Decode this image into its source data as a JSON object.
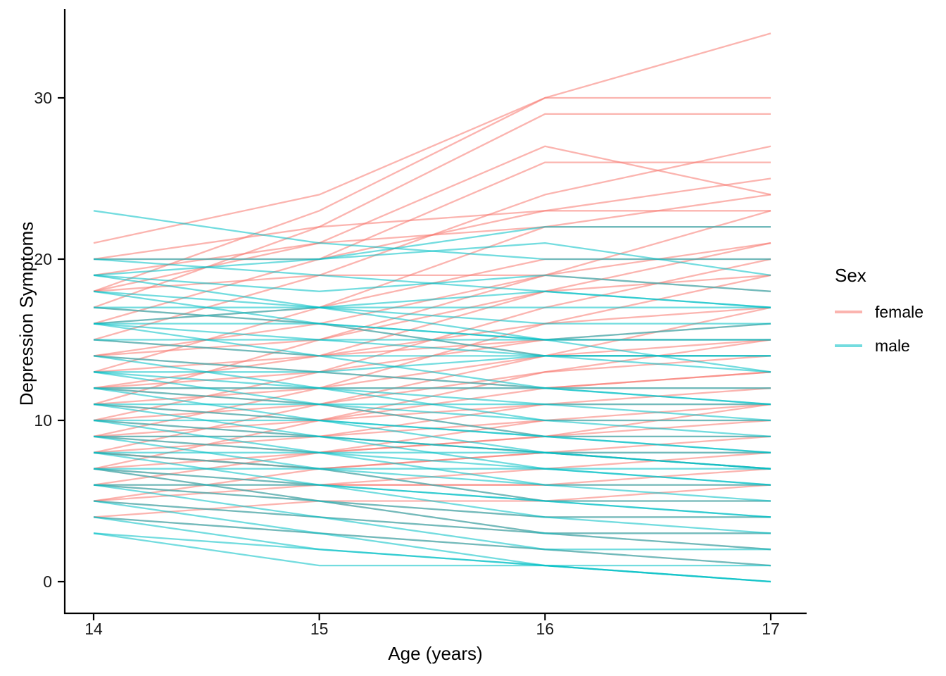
{
  "chart_data": {
    "type": "line",
    "title": "",
    "xlabel": "Age (years)",
    "ylabel": "Depression Symptoms",
    "x": [
      14,
      15,
      16,
      17
    ],
    "x_ticks": [
      "14",
      "15",
      "16",
      "17"
    ],
    "y_ticks": [
      "0",
      "10",
      "20",
      "30"
    ],
    "y_tick_values": [
      0,
      10,
      20,
      30
    ],
    "xlim": [
      13.85,
      17.15
    ],
    "ylim": [
      -2.2,
      35.5
    ],
    "grid": false,
    "line_opacity": 0.55,
    "line_width": 2.3,
    "legend": {
      "title": "Sex",
      "position": "right",
      "items": [
        {
          "label": "female",
          "color": "#F8766D"
        },
        {
          "label": "male",
          "color": "#00BFC4"
        }
      ]
    },
    "series": [
      {
        "sex": "female",
        "values": [
          21,
          24,
          30,
          34
        ]
      },
      {
        "sex": "female",
        "values": [
          18,
          23,
          30,
          30
        ]
      },
      {
        "sex": "female",
        "values": [
          17,
          22,
          29,
          29
        ]
      },
      {
        "sex": "female",
        "values": [
          15,
          19,
          24,
          27
        ]
      },
      {
        "sex": "female",
        "values": [
          16,
          20,
          26,
          26
        ]
      },
      {
        "sex": "female",
        "values": [
          20,
          22,
          23,
          25
        ]
      },
      {
        "sex": "female",
        "values": [
          18,
          21,
          27,
          24
        ]
      },
      {
        "sex": "female",
        "values": [
          13,
          17,
          22,
          24
        ]
      },
      {
        "sex": "female",
        "values": [
          20,
          20,
          23,
          23
        ]
      },
      {
        "sex": "female",
        "values": [
          11,
          15,
          19,
          23
        ]
      },
      {
        "sex": "female",
        "values": [
          19,
          21,
          22,
          22
        ]
      },
      {
        "sex": "female",
        "values": [
          12,
          14,
          18,
          21
        ]
      },
      {
        "sex": "female",
        "values": [
          18,
          19,
          19,
          21
        ]
      },
      {
        "sex": "female",
        "values": [
          10,
          13,
          17,
          20
        ]
      },
      {
        "sex": "female",
        "values": [
          16,
          17,
          20,
          20
        ]
      },
      {
        "sex": "female",
        "values": [
          9,
          12,
          16,
          19
        ]
      },
      {
        "sex": "female",
        "values": [
          14,
          15,
          18,
          19
        ]
      },
      {
        "sex": "female",
        "values": [
          17,
          16,
          19,
          18
        ]
      },
      {
        "sex": "female",
        "values": [
          8,
          11,
          14,
          17
        ]
      },
      {
        "sex": "female",
        "values": [
          13,
          14,
          16,
          17
        ]
      },
      {
        "sex": "female",
        "values": [
          12,
          13,
          15,
          16
        ]
      },
      {
        "sex": "female",
        "values": [
          15,
          14,
          15,
          15
        ]
      },
      {
        "sex": "female",
        "values": [
          7,
          10,
          13,
          15
        ]
      },
      {
        "sex": "female",
        "values": [
          11,
          12,
          14,
          14
        ]
      },
      {
        "sex": "female",
        "values": [
          14,
          16,
          14,
          15
        ]
      },
      {
        "sex": "female",
        "values": [
          10,
          11,
          13,
          14
        ]
      },
      {
        "sex": "female",
        "values": [
          9,
          10,
          12,
          13
        ]
      },
      {
        "sex": "female",
        "values": [
          14,
          13,
          12,
          13
        ]
      },
      {
        "sex": "female",
        "values": [
          8,
          9,
          11,
          12
        ]
      },
      {
        "sex": "female",
        "values": [
          12,
          12,
          12,
          12
        ]
      },
      {
        "sex": "female",
        "values": [
          6,
          8,
          10,
          11
        ]
      },
      {
        "sex": "female",
        "values": [
          11,
          10,
          11,
          11
        ]
      },
      {
        "sex": "female",
        "values": [
          12,
          11,
          9,
          11
        ]
      },
      {
        "sex": "female",
        "values": [
          7,
          8,
          9,
          10
        ]
      },
      {
        "sex": "female",
        "values": [
          10,
          9,
          10,
          10
        ]
      },
      {
        "sex": "female",
        "values": [
          5,
          7,
          8,
          9
        ]
      },
      {
        "sex": "female",
        "values": [
          9,
          8,
          9,
          9
        ]
      },
      {
        "sex": "female",
        "values": [
          8,
          7,
          8,
          8
        ]
      },
      {
        "sex": "female",
        "values": [
          6,
          6,
          7,
          8
        ]
      },
      {
        "sex": "female",
        "values": [
          9,
          9,
          8,
          7
        ]
      },
      {
        "sex": "female",
        "values": [
          5,
          6,
          6,
          7
        ]
      },
      {
        "sex": "female",
        "values": [
          7,
          6,
          6,
          6
        ]
      },
      {
        "sex": "female",
        "values": [
          4,
          5,
          5,
          6
        ]
      },
      {
        "sex": "female",
        "values": [
          8,
          7,
          5,
          5
        ]
      },
      {
        "sex": "female",
        "values": [
          6,
          5,
          4,
          4
        ]
      },
      {
        "sex": "female",
        "values": [
          5,
          4,
          3,
          3
        ]
      },
      {
        "sex": "female",
        "values": [
          4,
          3,
          2,
          1
        ]
      },
      {
        "sex": "female",
        "values": [
          7,
          5,
          3,
          2
        ]
      },
      {
        "sex": "male",
        "values": [
          23,
          21,
          20,
          20
        ]
      },
      {
        "sex": "male",
        "values": [
          19,
          20,
          22,
          22
        ]
      },
      {
        "sex": "male",
        "values": [
          20,
          20,
          21,
          19
        ]
      },
      {
        "sex": "male",
        "values": [
          19,
          18,
          19,
          18
        ]
      },
      {
        "sex": "male",
        "values": [
          16,
          17,
          18,
          17
        ]
      },
      {
        "sex": "male",
        "values": [
          18,
          17,
          16,
          16
        ]
      },
      {
        "sex": "male",
        "values": [
          17,
          16,
          15,
          16
        ]
      },
      {
        "sex": "male",
        "values": [
          16,
          15,
          15,
          15
        ]
      },
      {
        "sex": "male",
        "values": [
          16,
          16,
          15,
          15
        ]
      },
      {
        "sex": "male",
        "values": [
          15,
          14,
          14,
          14
        ]
      },
      {
        "sex": "male",
        "values": [
          19,
          17,
          15,
          13
        ]
      },
      {
        "sex": "male",
        "values": [
          14,
          13,
          14,
          13
        ]
      },
      {
        "sex": "male",
        "values": [
          13,
          13,
          12,
          12
        ]
      },
      {
        "sex": "male",
        "values": [
          16,
          14,
          12,
          11
        ]
      },
      {
        "sex": "male",
        "values": [
          12,
          12,
          11,
          11
        ]
      },
      {
        "sex": "male",
        "values": [
          11,
          11,
          10,
          10
        ]
      },
      {
        "sex": "male",
        "values": [
          14,
          12,
          10,
          9
        ]
      },
      {
        "sex": "male",
        "values": [
          10,
          10,
          9,
          9
        ]
      },
      {
        "sex": "male",
        "values": [
          13,
          11,
          9,
          8
        ]
      },
      {
        "sex": "male",
        "values": [
          9,
          9,
          8,
          8
        ]
      },
      {
        "sex": "male",
        "values": [
          12,
          10,
          8,
          7
        ]
      },
      {
        "sex": "male",
        "values": [
          8,
          8,
          7,
          7
        ]
      },
      {
        "sex": "male",
        "values": [
          11,
          9,
          7,
          6
        ]
      },
      {
        "sex": "male",
        "values": [
          7,
          7,
          6,
          6
        ]
      },
      {
        "sex": "male",
        "values": [
          10,
          8,
          6,
          5
        ]
      },
      {
        "sex": "male",
        "values": [
          7,
          6,
          5,
          5
        ]
      },
      {
        "sex": "male",
        "values": [
          9,
          7,
          5,
          4
        ]
      },
      {
        "sex": "male",
        "values": [
          6,
          5,
          4,
          4
        ]
      },
      {
        "sex": "male",
        "values": [
          8,
          6,
          4,
          3
        ]
      },
      {
        "sex": "male",
        "values": [
          5,
          4,
          3,
          3
        ]
      },
      {
        "sex": "male",
        "values": [
          7,
          5,
          3,
          2
        ]
      },
      {
        "sex": "male",
        "values": [
          6,
          4,
          2,
          2
        ]
      },
      {
        "sex": "male",
        "values": [
          4,
          3,
          2,
          1
        ]
      },
      {
        "sex": "male",
        "values": [
          5,
          3,
          1,
          1
        ]
      },
      {
        "sex": "male",
        "values": [
          3,
          2,
          1,
          0
        ]
      },
      {
        "sex": "male",
        "values": [
          3,
          1,
          1,
          0
        ]
      },
      {
        "sex": "male",
        "values": [
          4,
          2,
          1,
          0
        ]
      },
      {
        "sex": "male",
        "values": [
          6,
          6,
          5,
          4
        ]
      },
      {
        "sex": "male",
        "values": [
          10,
          9,
          8,
          7
        ]
      },
      {
        "sex": "male",
        "values": [
          12,
          11,
          11,
          10
        ]
      },
      {
        "sex": "male",
        "values": [
          15,
          15,
          14,
          14
        ]
      },
      {
        "sex": "male",
        "values": [
          17,
          17,
          17,
          17
        ]
      },
      {
        "sex": "male",
        "values": [
          20,
          19,
          18,
          17
        ]
      },
      {
        "sex": "male",
        "values": [
          18,
          16,
          14,
          14
        ]
      },
      {
        "sex": "male",
        "values": [
          9,
          8,
          8,
          7
        ]
      },
      {
        "sex": "male",
        "values": [
          11,
          10,
          9,
          8
        ]
      },
      {
        "sex": "male",
        "values": [
          8,
          7,
          7,
          6
        ]
      },
      {
        "sex": "male",
        "values": [
          13,
          12,
          12,
          11
        ]
      }
    ]
  }
}
